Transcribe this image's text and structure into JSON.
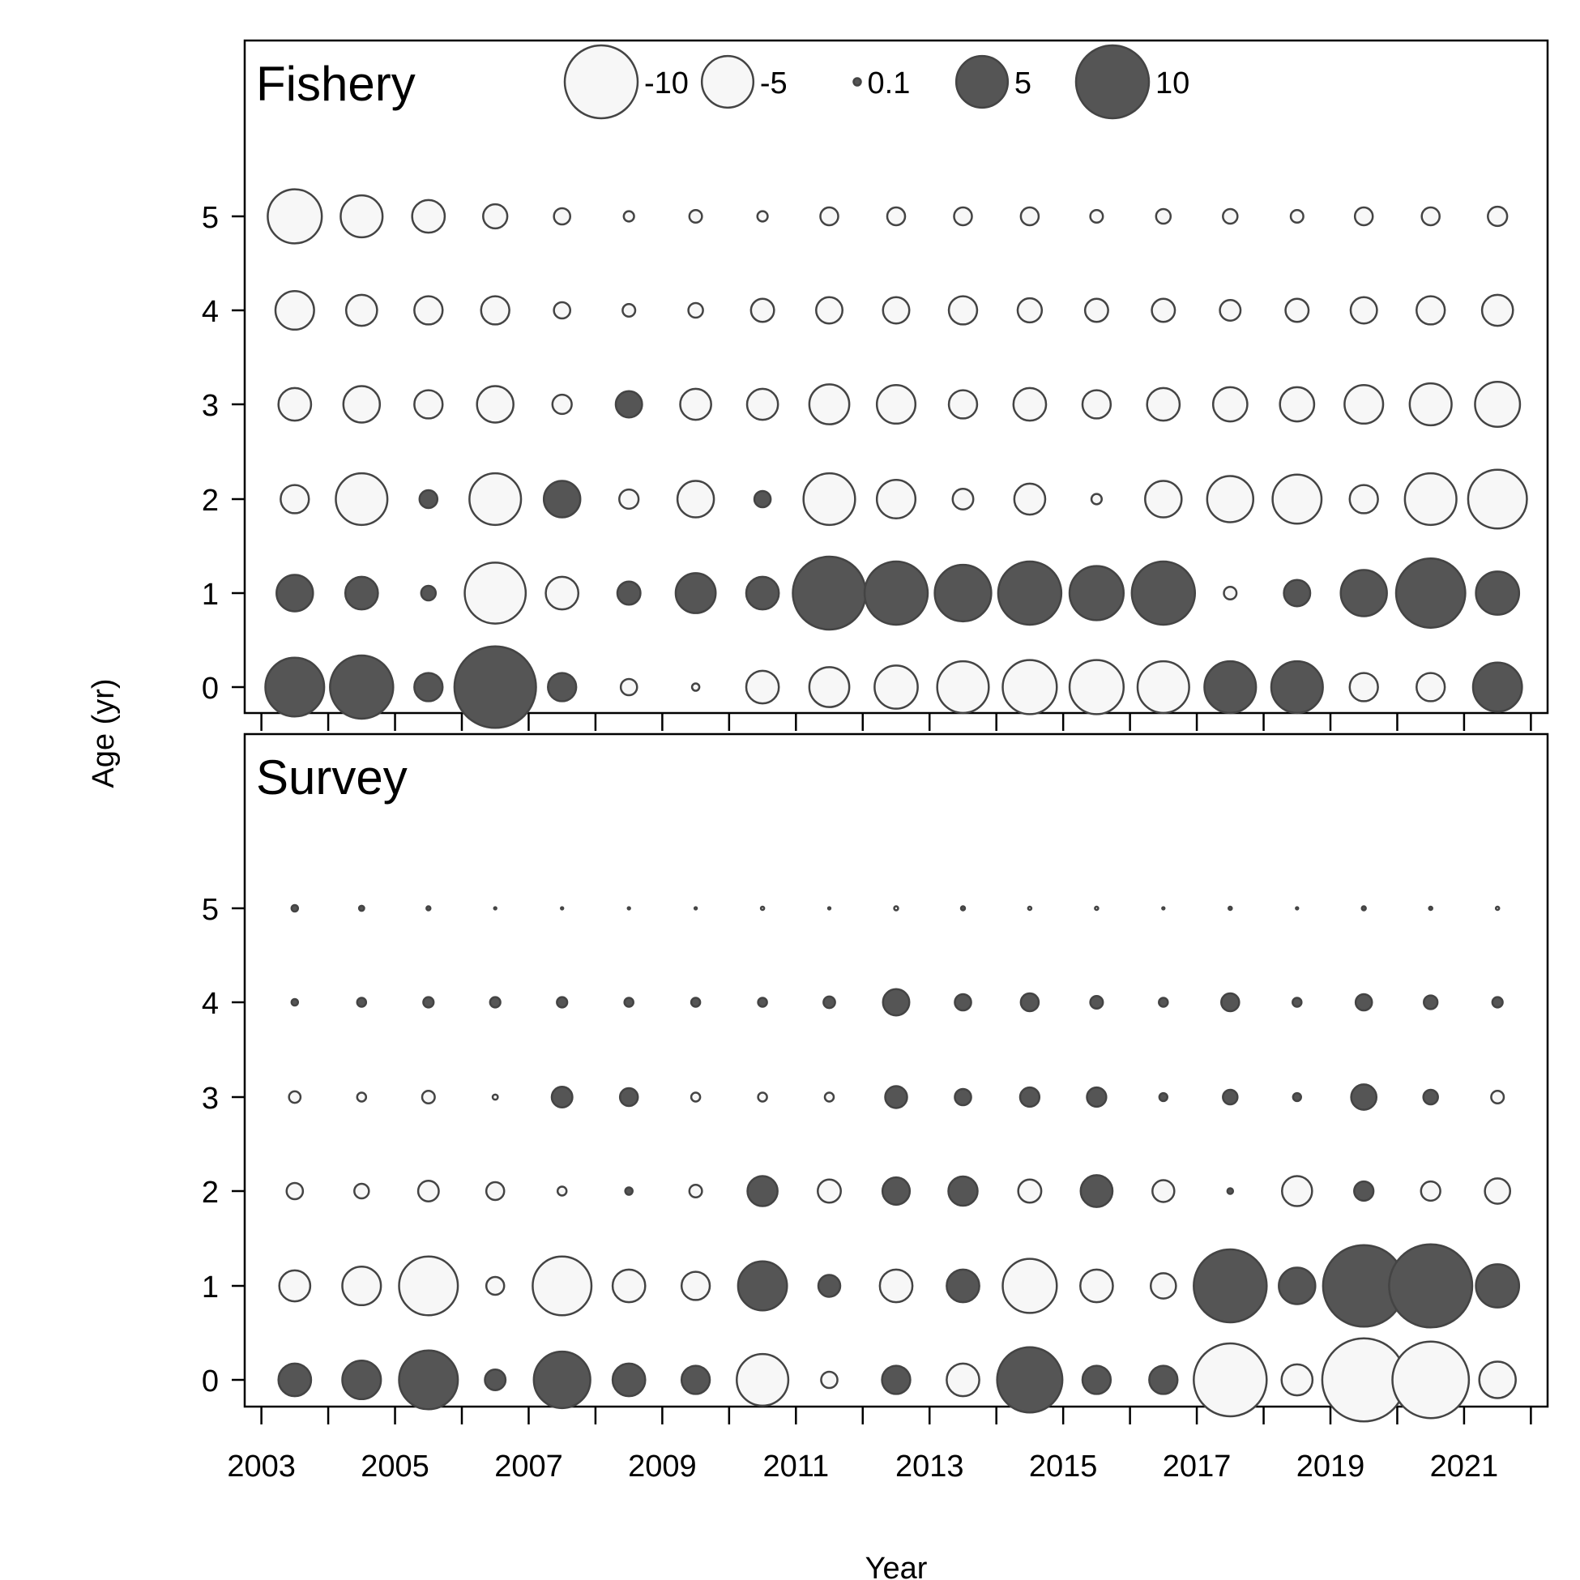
{
  "chart_data": {
    "type": "scatter",
    "subtype": "bubble",
    "xlabel": "Year",
    "ylabel": "Age (yr)",
    "x_tick_labels": [
      "2003",
      "2005",
      "2007",
      "2009",
      "2011",
      "2013",
      "2015",
      "2017",
      "2019",
      "2021"
    ],
    "y_tick_labels": [
      "0",
      "1",
      "2",
      "3",
      "4",
      "5"
    ],
    "xlim": [
      2002.75,
      2022.25
    ],
    "ages": [
      0,
      1,
      2,
      3,
      4,
      5
    ],
    "years": [
      2003.5,
      2004.5,
      2005.5,
      2006.5,
      2007.5,
      2008.5,
      2009.5,
      2010.5,
      2011.5,
      2012.5,
      2013.5,
      2014.5,
      2015.5,
      2016.5,
      2017.5,
      2018.5,
      2019.5,
      2020.5,
      2021.5
    ],
    "legend": {
      "position": "top-center",
      "entries": [
        {
          "label": "-10",
          "value": -10
        },
        {
          "label": "-5",
          "value": -5
        },
        {
          "label": "0.1",
          "value": 0.1
        },
        {
          "label": "5",
          "value": 5
        },
        {
          "label": "10",
          "value": 10
        }
      ]
    },
    "colors": {
      "positive": "#555555",
      "negative": "#f7f7f7",
      "stroke": "#444444"
    },
    "panels": [
      {
        "title": "Fishery",
        "note": "residuals by age (rows age 0..5) and year (columns 2003.5..2021.5)",
        "residuals": [
          [
            6.5,
            7.5,
            1.5,
            12.5,
            1.5,
            -0.5,
            -0.1,
            -2.0,
            -3.0,
            -3.5,
            -5.0,
            -5.5,
            -5.5,
            -5.0,
            5.0,
            5.0,
            -1.5,
            -1.5,
            4.5
          ],
          [
            2.5,
            2.0,
            0.4,
            -7.0,
            -2.0,
            1.0,
            3.0,
            2.0,
            10.0,
            7.5,
            6.0,
            7.5,
            5.5,
            7.5,
            -0.3,
            1.3,
            4.0,
            9.0,
            3.5
          ],
          [
            -1.5,
            -5.0,
            0.6,
            -5.0,
            2.5,
            -0.7,
            -2.5,
            0.5,
            -5.0,
            -2.8,
            -0.8,
            -1.8,
            -0.2,
            -2.5,
            -4.0,
            -4.5,
            -1.5,
            -5.0,
            -6.5
          ],
          [
            -2.0,
            -2.5,
            -1.5,
            -2.5,
            -0.7,
            1.3,
            -1.8,
            -1.8,
            -3.0,
            -2.8,
            -1.5,
            -2.0,
            -1.5,
            -2.0,
            -2.2,
            -2.2,
            -2.8,
            -3.3,
            -3.8
          ],
          [
            -2.8,
            -1.8,
            -1.5,
            -1.5,
            -0.5,
            -0.3,
            -0.4,
            -1.0,
            -1.3,
            -1.3,
            -1.5,
            -1.1,
            -1.0,
            -1.0,
            -0.8,
            -1.0,
            -1.3,
            -1.5,
            -1.8
          ],
          [
            -5.5,
            -3.3,
            -2.0,
            -1.1,
            -0.5,
            -0.2,
            -0.3,
            -0.2,
            -0.6,
            -0.6,
            -0.6,
            -0.6,
            -0.3,
            -0.4,
            -0.4,
            -0.3,
            -0.6,
            -0.6,
            -0.7
          ]
        ]
      },
      {
        "title": "Survey",
        "note": "residuals by age (rows age 0..5) and year (columns 2003.5..2021.5)",
        "residuals": [
          [
            2.0,
            2.8,
            6.5,
            0.8,
            6.0,
            2.0,
            1.5,
            -5.0,
            -0.5,
            1.5,
            -2.0,
            8.0,
            1.5,
            1.5,
            -10.0,
            -1.8,
            -13.0,
            -11.0,
            -2.5
          ],
          [
            -1.8,
            -2.8,
            -6.5,
            -0.6,
            -6.5,
            -2.0,
            -1.5,
            4.5,
            0.9,
            -2.0,
            2.0,
            -5.5,
            -2.0,
            -1.2,
            10.0,
            2.5,
            12.5,
            13.0,
            3.5
          ],
          [
            -0.5,
            -0.4,
            -0.8,
            -0.6,
            -0.15,
            0.1,
            -0.3,
            1.7,
            -1.0,
            1.4,
            1.6,
            -1.0,
            1.9,
            -0.9,
            0.06,
            -1.7,
            0.7,
            -0.7,
            -1.2
          ],
          [
            -0.25,
            -0.15,
            -0.3,
            -0.05,
            0.8,
            0.6,
            -0.15,
            -0.15,
            -0.15,
            0.9,
            0.5,
            0.7,
            0.7,
            0.12,
            0.4,
            0.12,
            1.2,
            0.4,
            -0.3
          ],
          [
            0.08,
            0.15,
            0.2,
            0.2,
            0.2,
            0.15,
            0.15,
            0.15,
            0.25,
            1.3,
            0.5,
            0.6,
            0.3,
            0.15,
            0.6,
            0.15,
            0.5,
            0.35,
            0.2
          ],
          [
            0.08,
            0.05,
            0.03,
            -0.01,
            -0.01,
            -0.01,
            -0.01,
            -0.02,
            -0.01,
            -0.03,
            0.03,
            -0.02,
            -0.02,
            -0.01,
            0.02,
            -0.01,
            0.03,
            0.02,
            -0.02
          ]
        ]
      }
    ]
  }
}
